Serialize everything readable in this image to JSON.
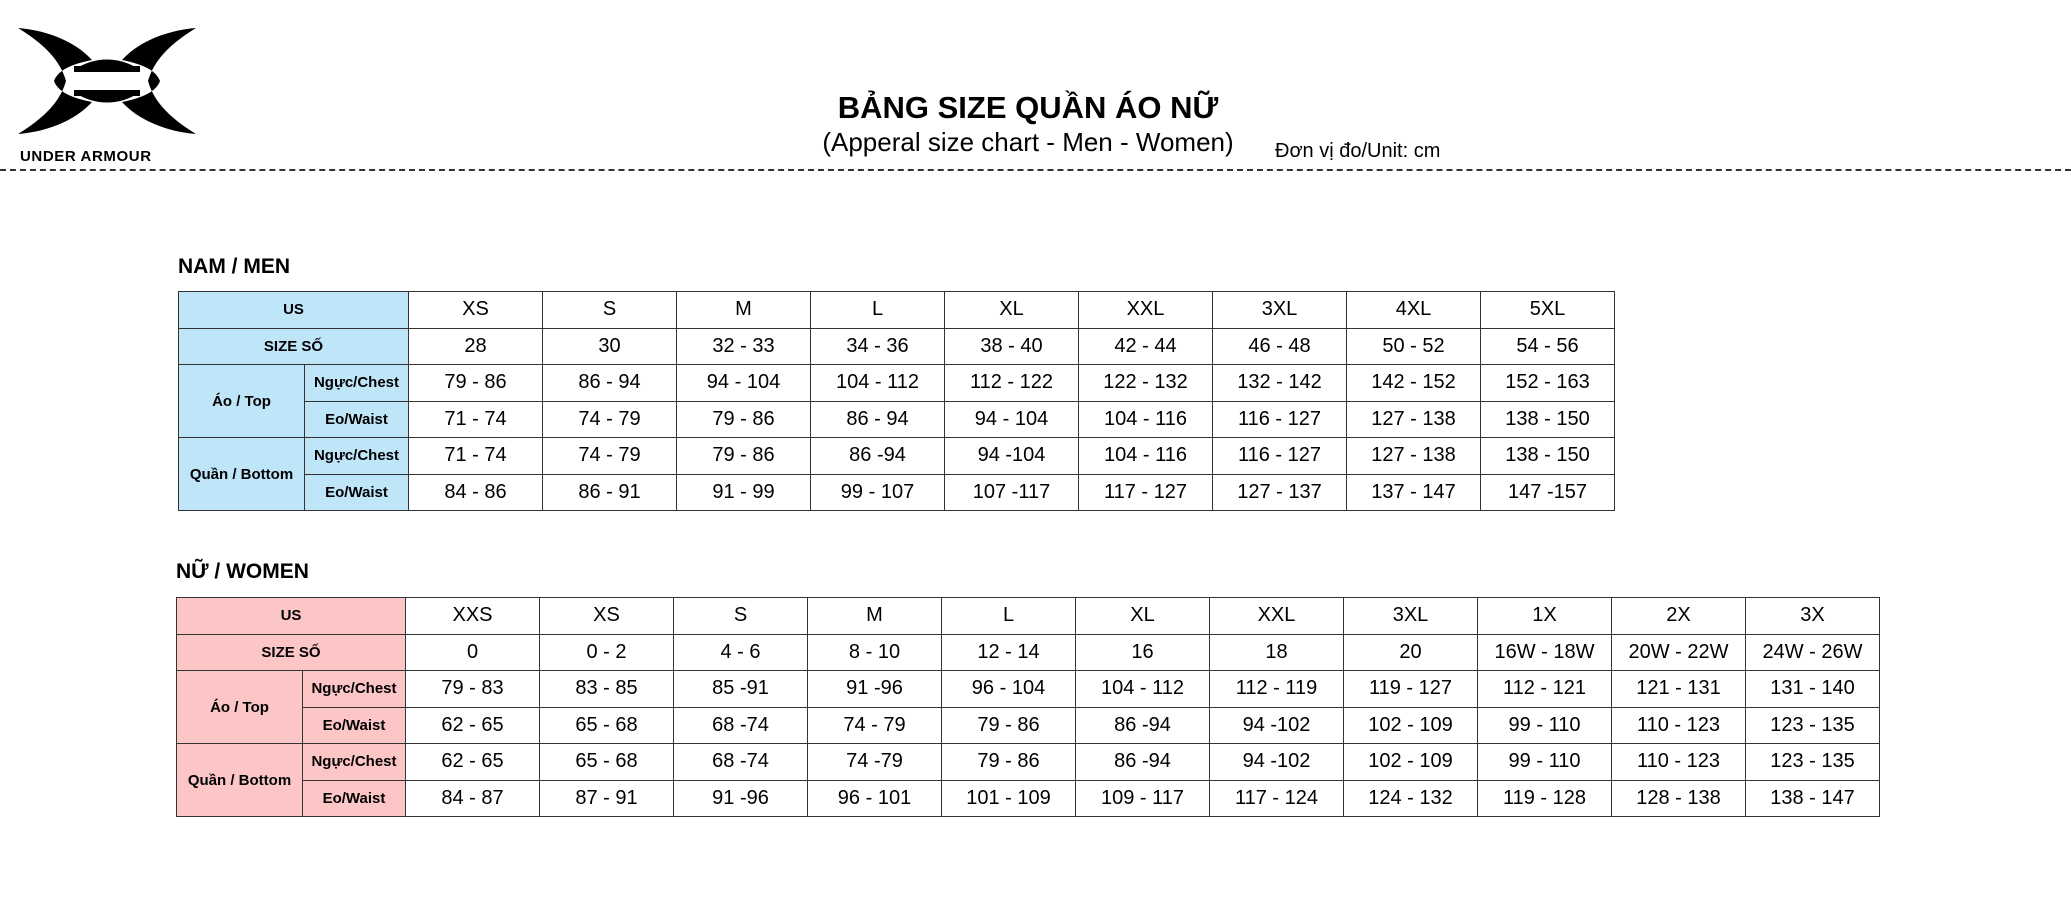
{
  "brand": {
    "name": "UNDER ARMOUR",
    "logo": "under-armour-logo"
  },
  "header": {
    "title": "BẢNG SIZE QUẦN ÁO NỮ",
    "subtitle": "(Apperal size chart - Men - Women)",
    "unit": "Đơn vị đo/Unit: cm"
  },
  "colors": {
    "men_header": "#bfe5f9",
    "women_header": "#fcc5c6"
  },
  "men": {
    "title": "NAM / MEN",
    "labels": {
      "us": "US",
      "size": "SIZE SỐ",
      "top": "Áo / Top",
      "bottom": "Quần / Bottom",
      "chest": "Ngực/Chest",
      "waist": "Eo/Waist"
    },
    "us": [
      "XS",
      "S",
      "M",
      "L",
      "XL",
      "XXL",
      "3XL",
      "4XL",
      "5XL"
    ],
    "size": [
      "28",
      "30",
      "32 - 33",
      "34 - 36",
      "38 - 40",
      "42 - 44",
      "46 - 48",
      "50 - 52",
      "54 - 56"
    ],
    "top_chest": [
      "79 - 86",
      "86 - 94",
      "94 - 104",
      "104 - 112",
      "112 - 122",
      "122 - 132",
      "132 - 142",
      "142 - 152",
      "152 - 163"
    ],
    "top_waist": [
      "71 - 74",
      "74 - 79",
      "79 - 86",
      "86 - 94",
      "94 - 104",
      "104 - 116",
      "116 - 127",
      "127 - 138",
      "138 - 150"
    ],
    "bottom_chest": [
      "71 - 74",
      "74 - 79",
      "79 - 86",
      "86 -94",
      "94 -104",
      "104 - 116",
      "116 - 127",
      "127 - 138",
      "138 - 150"
    ],
    "bottom_waist": [
      "84 - 86",
      "86 - 91",
      "91 - 99",
      "99 - 107",
      "107 -117",
      "117 - 127",
      "127 - 137",
      "137 - 147",
      "147 -157"
    ]
  },
  "women": {
    "title": "NỮ / WOMEN",
    "labels": {
      "us": "US",
      "size": "SIZE SỐ",
      "top": "Áo / Top",
      "bottom": "Quần / Bottom",
      "chest": "Ngực/Chest",
      "waist": "Eo/Waist"
    },
    "us": [
      "XXS",
      "XS",
      "S",
      "M",
      "L",
      "XL",
      "XXL",
      "3XL",
      "1X",
      "2X",
      "3X"
    ],
    "size": [
      "0",
      "0 - 2",
      "4 - 6",
      "8 - 10",
      "12 - 14",
      "16",
      "18",
      "20",
      "16W - 18W",
      "20W - 22W",
      "24W - 26W"
    ],
    "top_chest": [
      "79 - 83",
      "83 - 85",
      "85 -91",
      "91 -96",
      "96 - 104",
      "104 - 112",
      "112 - 119",
      "119 - 127",
      "112 - 121",
      "121 - 131",
      "131 - 140"
    ],
    "top_waist": [
      "62 - 65",
      "65 - 68",
      "68 -74",
      "74 - 79",
      "79 - 86",
      "86 -94",
      "94 -102",
      "102 - 109",
      "99 - 110",
      "110 - 123",
      "123 - 135"
    ],
    "bottom_chest": [
      "62 - 65",
      "65 - 68",
      "68 -74",
      "74 -79",
      "79 - 86",
      "86 -94",
      "94 -102",
      "102 - 109",
      "99 - 110",
      "110 - 123",
      "123 - 135"
    ],
    "bottom_waist": [
      "84 - 87",
      "87 - 91",
      "91 -96",
      "96 - 101",
      "101 - 109",
      "109 - 117",
      "117 - 124",
      "124 - 132",
      "119 - 128",
      "128 - 138",
      "138 - 147"
    ]
  }
}
